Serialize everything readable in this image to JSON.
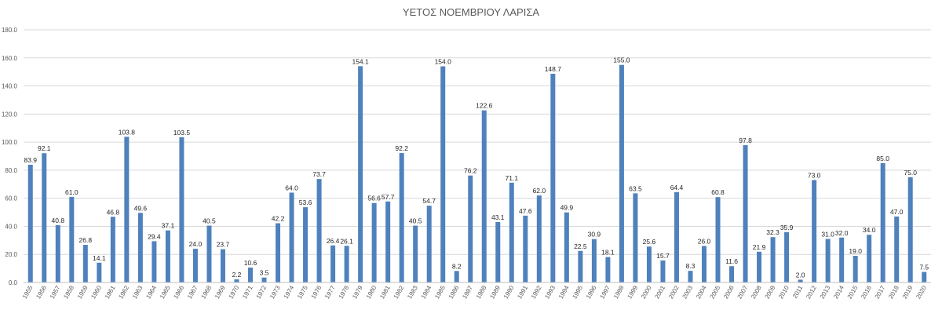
{
  "chart_data": {
    "type": "bar",
    "title": "ΥΕΤΟΣ ΝΟΕΜΒΡΙΟΥ ΛΑΡΙΣΑ",
    "xlabel": "",
    "ylabel": "",
    "ylim": [
      0,
      180
    ],
    "yticks": [
      "0.0",
      "20.0",
      "40.0",
      "60.0",
      "80.0",
      "100.0",
      "120.0",
      "140.0",
      "160.0",
      "180.0"
    ],
    "grid": true,
    "bar_color": "#4f81bd",
    "categories": [
      "1955",
      "1956",
      "1957",
      "1958",
      "1959",
      "1960",
      "1961",
      "1962",
      "1963",
      "1964",
      "1965",
      "1966",
      "1967",
      "1968",
      "1969",
      "1970",
      "1971",
      "1972",
      "1973",
      "1974",
      "1975",
      "1976",
      "1977",
      "1978",
      "1979",
      "1980",
      "1981",
      "1982",
      "1983",
      "1984",
      "1985",
      "1986",
      "1987",
      "1988",
      "1989",
      "1990",
      "1991",
      "1992",
      "1993",
      "1994",
      "1995",
      "1996",
      "1997",
      "1998",
      "1999",
      "2000",
      "2001",
      "2002",
      "2003",
      "2004",
      "2005",
      "2006",
      "2007",
      "2008",
      "2009",
      "2010",
      "2011",
      "2012",
      "2013",
      "2014",
      "2015",
      "2016",
      "2017",
      "2018",
      "2019",
      "2020"
    ],
    "values": [
      83.9,
      92.1,
      40.8,
      61.0,
      26.8,
      14.1,
      46.8,
      103.8,
      49.6,
      29.4,
      37.1,
      103.5,
      24.0,
      40.5,
      23.7,
      2.2,
      10.6,
      3.5,
      42.2,
      64.0,
      53.6,
      73.7,
      26.4,
      26.1,
      154.1,
      56.6,
      57.7,
      92.2,
      40.5,
      54.7,
      154.0,
      8.2,
      76.2,
      122.6,
      43.1,
      71.1,
      47.6,
      62.0,
      148.7,
      49.9,
      22.5,
      30.9,
      18.1,
      155.0,
      63.5,
      25.6,
      15.7,
      64.4,
      8.3,
      26.0,
      60.8,
      11.6,
      97.8,
      21.9,
      32.3,
      35.9,
      2.0,
      73.0,
      31.0,
      32.0,
      19.0,
      34.0,
      85.0,
      47.0,
      75.0,
      7.5
    ],
    "data_labels": [
      "83.9",
      "92.1",
      "40.8",
      "61.0",
      "26.8",
      "14.1",
      "46.8",
      "103.8",
      "49.6",
      "29.4",
      "37.1",
      "103.5",
      "24.0",
      "40.5",
      "23.7",
      "2.2",
      "10.6",
      "3.5",
      "42.2",
      "64.0",
      "53.6",
      "73.7",
      "26.4",
      "26.1",
      "154.1",
      "56.6",
      "57.7",
      "92.2",
      "40.5",
      "54.7",
      "154.0",
      "8.2",
      "76.2",
      "122.6",
      "43.1",
      "71.1",
      "47.6",
      "62.0",
      "148.7",
      "49.9",
      "22.5",
      "30.9",
      "18.1",
      "155.0",
      "63.5",
      "25.6",
      "15.7",
      "64.4",
      "8.3",
      "26.0",
      "60.8",
      "11.6",
      "97.8",
      "21.9",
      "32.3",
      "35.9",
      "2.0",
      "73.0",
      "31.0",
      "32.0",
      "19.0",
      "34.0",
      "85.0",
      "47.0",
      "75.0",
      "7.5"
    ]
  }
}
